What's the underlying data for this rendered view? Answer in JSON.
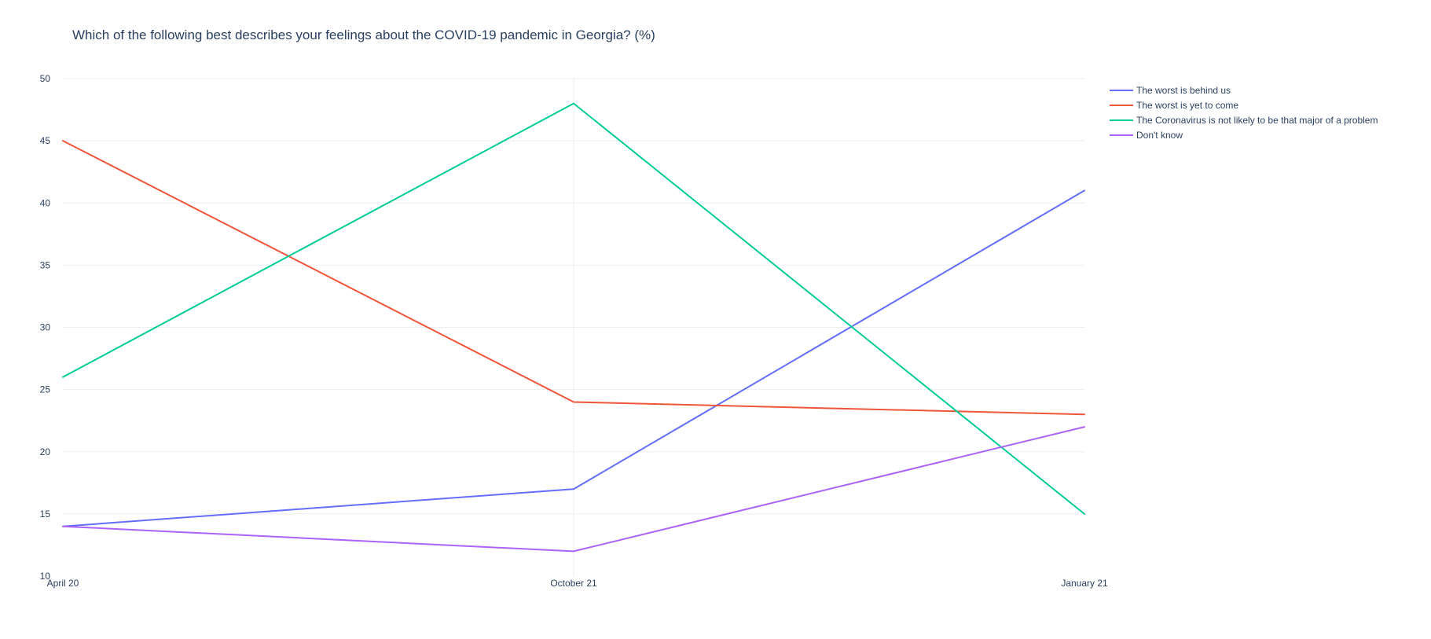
{
  "chart_data": {
    "type": "line",
    "title": "Which of the following best describes your feelings about the COVID-19 pandemic in Georgia? (%)",
    "xlabel": "",
    "ylabel": "",
    "categories": [
      "April 20",
      "October 21",
      "January 21"
    ],
    "ylim": [
      10,
      50
    ],
    "yticks": [
      10,
      15,
      20,
      25,
      30,
      35,
      40,
      45,
      50
    ],
    "grid": true,
    "legend_position": "top-right",
    "series": [
      {
        "name": "The worst is behind us",
        "color": "#636efa",
        "values": [
          14,
          17,
          41
        ]
      },
      {
        "name": "The worst is yet to come",
        "color": "#ef553b",
        "values": [
          45,
          24,
          23
        ]
      },
      {
        "name": "The Coronavirus is not likely to be that major of a problem",
        "color": "#00cc96",
        "values": [
          26,
          48,
          15
        ]
      },
      {
        "name": "Don't know",
        "color": "#ab63fa",
        "values": [
          14,
          12,
          22
        ]
      }
    ]
  }
}
